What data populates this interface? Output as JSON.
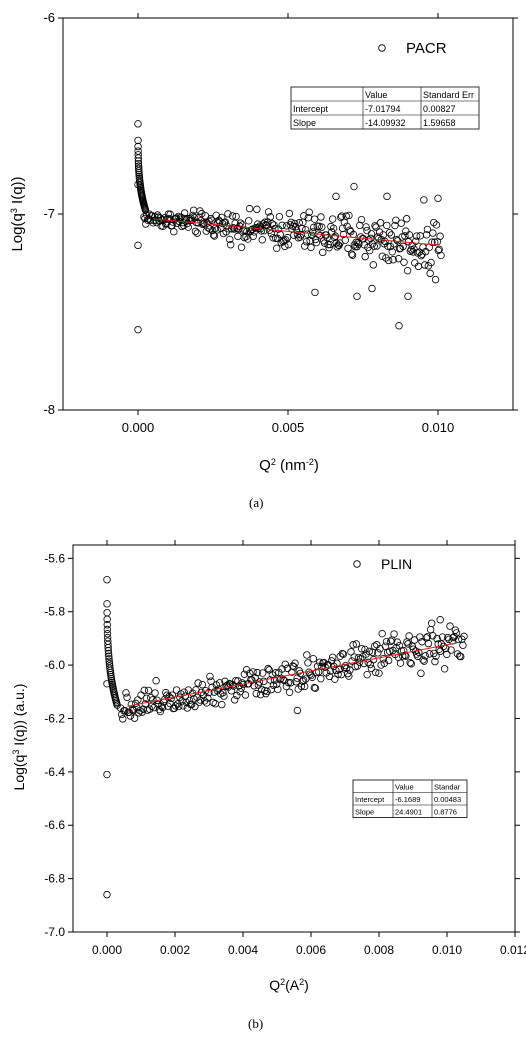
{
  "chart_data": [
    {
      "type": "scatter",
      "caption": "(a)",
      "xlabel_main": "Q",
      "xlabel_sup": "2",
      "xlabel_unit_pre": " (nm",
      "xlabel_unit_sup": "-2",
      "xlabel_unit_post": ")",
      "ylabel_main": "Log(q",
      "ylabel_sup": "3",
      "ylabel_post": " I(q))",
      "xlim": [
        -0.0025,
        0.0125
      ],
      "ylim": [
        -8,
        -6
      ],
      "xticks": [
        {
          "v": 0.0,
          "label": "0.000"
        },
        {
          "v": 0.005,
          "label": "0.005"
        },
        {
          "v": 0.01,
          "label": "0.010"
        }
      ],
      "yticks": [
        {
          "v": -8,
          "label": "-8"
        },
        {
          "v": -7,
          "label": "-7"
        },
        {
          "v": -6,
          "label": "-6"
        }
      ],
      "legend": {
        "label": "PACR",
        "position": "top-right"
      },
      "fit": {
        "intercept": -7.01794,
        "slope": -14.09932,
        "x_start": 0.0005,
        "x_end": 0.01,
        "color": "#e0201e"
      },
      "fit_table": {
        "header": [
          "",
          "Value",
          "Standard Err"
        ],
        "rows": [
          [
            "Intercept",
            "-7.01794",
            "0.00827"
          ],
          [
            "Slope",
            "-14.09932",
            "1.59658"
          ]
        ]
      },
      "sampling": {
        "x_min": 0.0002,
        "x_max": 0.0101,
        "n": 330,
        "scatter_base": 0.025,
        "scatter_growth": 0.09
      },
      "extra_points": [
        {
          "x": 0.0,
          "y": -7.59
        },
        {
          "x": 0.0,
          "y": -7.16
        },
        {
          "x": 0.0,
          "y": -6.85
        },
        {
          "x": 0.0087,
          "y": -7.57
        },
        {
          "x": 0.0072,
          "y": -6.86
        },
        {
          "x": 0.0059,
          "y": -7.4
        },
        {
          "x": 0.0073,
          "y": -7.42
        },
        {
          "x": 0.0078,
          "y": -7.38
        },
        {
          "x": 0.009,
          "y": -7.42
        },
        {
          "x": 0.0066,
          "y": -6.91
        },
        {
          "x": 0.01,
          "y": -6.92
        },
        {
          "x": 0.0083,
          "y": -6.91
        }
      ],
      "spike": {
        "x_min": 0.0,
        "x_max": 0.00025,
        "y_top": -6.54,
        "y_bottom": -6.98,
        "n": 40
      }
    },
    {
      "type": "scatter",
      "caption": "(b)",
      "xlabel_main": "Q",
      "xlabel_sup": "2",
      "xlabel_unit_pre": "(A",
      "xlabel_unit_sup": "2",
      "xlabel_unit_post": ")",
      "ylabel_main": "Log(q",
      "ylabel_sup": "3",
      "ylabel_post": " I(q)) (a.u.)",
      "xlim": [
        -0.001,
        0.012
      ],
      "ylim": [
        -7.0,
        -5.55
      ],
      "xticks": [
        {
          "v": 0.0,
          "label": "0.000"
        },
        {
          "v": 0.002,
          "label": "0.002"
        },
        {
          "v": 0.004,
          "label": "0.004"
        },
        {
          "v": 0.006,
          "label": "0.006"
        },
        {
          "v": 0.008,
          "label": "0.008"
        },
        {
          "v": 0.01,
          "label": "0.010"
        },
        {
          "v": 0.012,
          "label": "0.012"
        }
      ],
      "yticks": [
        {
          "v": -7.0,
          "label": "-7.0"
        },
        {
          "v": -6.8,
          "label": "-6.8"
        },
        {
          "v": -6.6,
          "label": "-6.6"
        },
        {
          "v": -6.4,
          "label": "-6.4"
        },
        {
          "v": -6.2,
          "label": "-6.2"
        },
        {
          "v": -6.0,
          "label": "-6.0"
        },
        {
          "v": -5.8,
          "label": "-5.8"
        },
        {
          "v": -5.6,
          "label": "-5.6"
        }
      ],
      "legend": {
        "label": "PLIN",
        "position": "top-right"
      },
      "fit": {
        "intercept": -6.1689,
        "slope": 24.4901,
        "x_start": 0.0006,
        "x_end": 0.0103,
        "color": "#e0201e"
      },
      "fit_table": {
        "header": [
          "",
          "Value",
          "Standar"
        ],
        "rows": [
          [
            "Intercept",
            "-6.1689",
            "0.00483"
          ],
          [
            "Slope",
            "24.4901",
            "0.8776"
          ]
        ]
      },
      "sampling": {
        "x_min": 0.0004,
        "x_max": 0.0105,
        "n": 320,
        "scatter_base": 0.04,
        "scatter_growth": 0.012
      },
      "extra_points": [
        {
          "x": 0.0,
          "y": -6.86
        },
        {
          "x": 0.0,
          "y": -6.41
        },
        {
          "x": 0.0,
          "y": -6.07
        },
        {
          "x": 0.0098,
          "y": -5.83
        },
        {
          "x": 0.0056,
          "y": -6.17
        }
      ],
      "spike": {
        "x_min": 0.0,
        "x_max": 0.0003,
        "y_top": -5.68,
        "y_bottom": -6.15,
        "n": 40
      }
    }
  ]
}
